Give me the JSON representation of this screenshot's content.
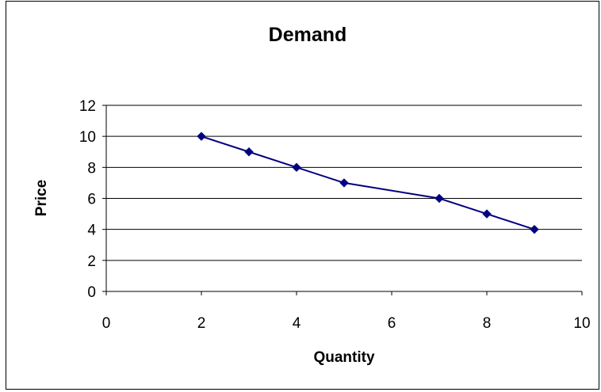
{
  "chart_data": {
    "type": "line",
    "title": "Demand",
    "xlabel": "Quantity",
    "ylabel": "Price",
    "xlim": [
      0,
      10
    ],
    "ylim": [
      0,
      12
    ],
    "xticks": [
      0,
      2,
      4,
      6,
      8,
      10
    ],
    "yticks": [
      0,
      2,
      4,
      6,
      8,
      10,
      12
    ],
    "grid": "horizontal",
    "legend": "none",
    "series": [
      {
        "color": "#000080",
        "marker": "diamond",
        "points": [
          {
            "x": 2,
            "y": 10
          },
          {
            "x": 3,
            "y": 9
          },
          {
            "x": 4,
            "y": 8
          },
          {
            "x": 5,
            "y": 7
          },
          {
            "x": 7,
            "y": 6
          },
          {
            "x": 8,
            "y": 5
          },
          {
            "x": 9,
            "y": 4
          }
        ]
      }
    ]
  }
}
